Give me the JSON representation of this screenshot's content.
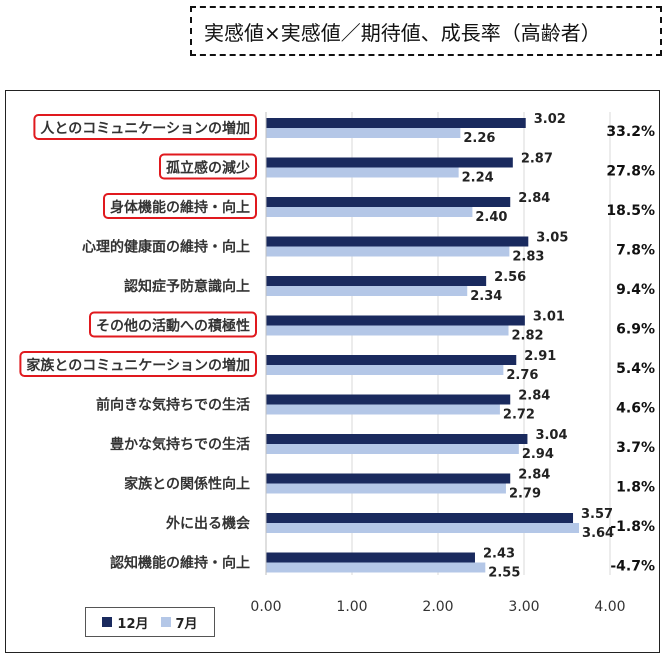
{
  "title": "実感値×実感値／期待値、成長率（高齢者）",
  "colors": {
    "series_12": "#1a2a5e",
    "series_7": "#b4c7e7",
    "highlight": "#e0191e",
    "grid": "#d9d9d9"
  },
  "legend": [
    {
      "label": "12月",
      "color": "#1a2a5e"
    },
    {
      "label": "7月",
      "color": "#b4c7e7"
    }
  ],
  "chart_data": {
    "type": "bar",
    "orientation": "horizontal",
    "categories": [
      "人とのコミュニケーションの増加",
      "孤立感の減少",
      "身体機能の維持・向上",
      "心理的健康面の維持・向上",
      "認知症予防意識向上",
      "その他の活動への積極性",
      "家族とのコミュニケーションの増加",
      "前向きな気持ちでの生活",
      "豊かな気持ちでの生活",
      "家族との関係性向上",
      "外に出る機会",
      "認知機能の維持・向上"
    ],
    "highlighted": [
      true,
      true,
      true,
      false,
      false,
      true,
      true,
      false,
      false,
      false,
      false,
      false
    ],
    "series": [
      {
        "name": "12月",
        "values": [
          3.02,
          2.87,
          2.84,
          3.05,
          2.56,
          3.01,
          2.91,
          2.84,
          3.04,
          2.84,
          3.57,
          2.43
        ],
        "labels": [
          "3.02",
          "2.87",
          "2.84",
          "3.05",
          "2.56",
          "3.01",
          "2.91",
          "2.84",
          "3.04",
          "2.84",
          "3.57",
          "2.43"
        ]
      },
      {
        "name": "7月",
        "values": [
          2.26,
          2.24,
          2.4,
          2.83,
          2.34,
          2.82,
          2.76,
          2.72,
          2.94,
          2.79,
          3.64,
          2.55
        ],
        "labels": [
          "2.26",
          "2.24",
          "2.40",
          "2.83",
          "2.34",
          "2.82",
          "2.76",
          "2.72",
          "2.94",
          "2.79",
          "3.64",
          "2.55"
        ]
      }
    ],
    "growth_rates": [
      "33.2%",
      "27.8%",
      "18.5%",
      "7.8%",
      "9.4%",
      "6.9%",
      "5.4%",
      "4.6%",
      "3.7%",
      "1.8%",
      "-1.8%",
      "-4.7%"
    ],
    "x_ticks": [
      "0.00",
      "1.00",
      "2.00",
      "3.00",
      "4.00"
    ],
    "xlim": [
      0,
      4
    ],
    "legend_position": "bottom-left",
    "grid": true
  }
}
